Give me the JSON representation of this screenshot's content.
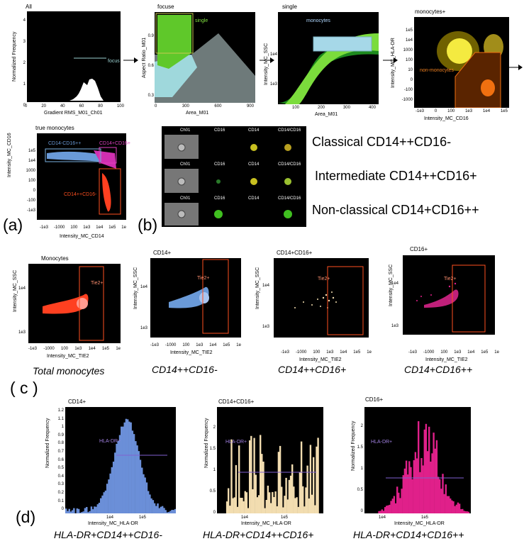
{
  "row1": {
    "all": {
      "title": "All",
      "ylabel": "Normalized Frequency",
      "xlabel": "Gradient RMS_M01_Ch01",
      "gate": "focus",
      "yticks": [
        "4",
        "3",
        "2",
        "1",
        "0"
      ],
      "xticks": [
        "0",
        "20",
        "40",
        "60",
        "80",
        "100"
      ]
    },
    "focuse": {
      "title": "focuse",
      "ylabel": "Aspect Ratio_M01",
      "xlabel": "Area_M01",
      "gate": "single",
      "yticks": [
        "0.9",
        "0.6",
        "0.3"
      ],
      "xticks": [
        "0",
        "300",
        "600",
        "900"
      ]
    },
    "single": {
      "title": "single",
      "ylabel": "Intensity_MC_SSC",
      "xlabel": "Area_M01",
      "gate": "monocytes",
      "yticks": [
        "1e4",
        "1e3"
      ],
      "xticks": [
        "100",
        "200",
        "300",
        "400"
      ]
    },
    "monocytes": {
      "title": "monocytes+",
      "ylabel": "Intensity_MC_HLA-DR",
      "xlabel": "Intensity_MC_CD16",
      "gate": "non-monocytes",
      "yticks": [
        "1e5",
        "1e4",
        "1000",
        "100",
        "10",
        "0",
        "-100",
        "-1000"
      ],
      "xticks": [
        "-1e3",
        "0",
        "100",
        "1e3",
        "1e4",
        "1e5"
      ]
    }
  },
  "true_monocytes": {
    "title": "true monocytes",
    "ylabel": "Intensity_MC_CD16",
    "xlabel": "Intensity_MC_CD14",
    "gates": [
      "CD14-CD16++",
      "CD14+CD16+",
      "CD14++CD16-"
    ],
    "yticks": [
      "1e5",
      "1e4",
      "1000",
      "100",
      "0",
      "-100",
      "-1e3"
    ],
    "xticks": [
      "-1e3",
      "-1000",
      "100",
      "1e3",
      "1e4",
      "1e5",
      "1e"
    ]
  },
  "cells": {
    "headers": [
      "Ch01",
      "CD16",
      "CD14",
      "CD14/CD16"
    ]
  },
  "classes": [
    "Classical CD14++CD16-",
    "Intermediate CD14++CD16+",
    "Non-classical CD14+CD16++"
  ],
  "labels": {
    "a": "(a)",
    "b": "(b)",
    "c": "( c )",
    "d": "(d)"
  },
  "row3": {
    "ylabel": "Intensity_MC_SSC",
    "xlabel": "Intensity_MC_TIE2",
    "gate": "Tie2+",
    "yticks": [
      "1e4",
      "1e3"
    ],
    "xticks": [
      "-1e3",
      "-1000",
      "100",
      "1e3",
      "1e4",
      "1e5",
      "1e"
    ],
    "panels": [
      {
        "title": "Monocytes",
        "caption": "Total monocytes"
      },
      {
        "title": "CD14+",
        "caption": "CD14++CD16-"
      },
      {
        "title": "CD14+CD16+",
        "caption": "CD14++CD16+"
      },
      {
        "title": "CD16+",
        "caption": "CD14+CD16++"
      }
    ]
  },
  "row4": {
    "ylabel": "Normalized Frequency",
    "xlabel": "Intensity_MC_HLA-DR",
    "gate": "HLA-DR+",
    "panels": [
      {
        "title": "CD14+",
        "caption": "HLA-DR+CD14++CD16-",
        "yticks": [
          "1.2",
          "1.1",
          "1",
          "0.9",
          "0.8",
          "0.7",
          "0.6",
          "0.5",
          "0.4",
          "0.3",
          "0.2",
          "0.1",
          "0"
        ],
        "xticks": [
          "1e4",
          "1e5"
        ],
        "color": "#6b8fd8"
      },
      {
        "title": "CD14+CD16+",
        "caption": "HLA-DR+CD14++CD16+",
        "yticks": [
          "2",
          "1.5",
          "1",
          "0.5",
          "0"
        ],
        "xticks": [
          "1e4",
          "1e5"
        ],
        "color": "#f2ddb0"
      },
      {
        "title": "CD16+",
        "caption": "HLA-DR+CD14+CD16++",
        "yticks": [
          "2",
          "1.5",
          "1",
          "0.5",
          "0"
        ],
        "xticks": [
          "1e4",
          "1e5"
        ],
        "color": "#e0208a"
      }
    ]
  }
}
